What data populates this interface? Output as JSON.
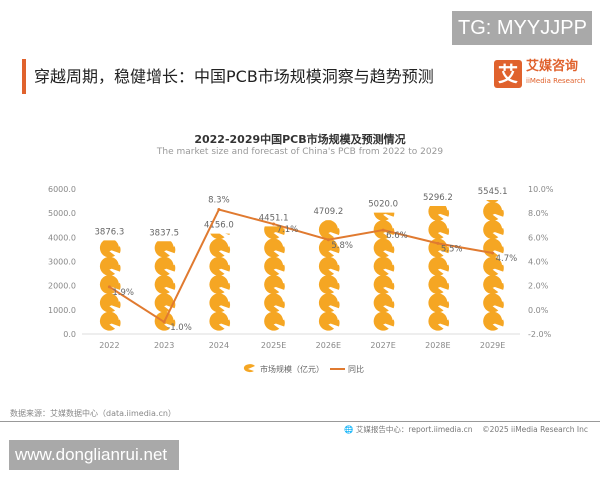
{
  "watermark_top": "TG: MYYJJPP",
  "watermark_bottom": "www.donglianrui.net",
  "header": {
    "title": "穿越周期，稳健增长：中国PCB市场规模洞察与趋势预测",
    "logo_mark": "艾",
    "logo_cn": "艾媒咨询",
    "logo_en": "iiMedia Research"
  },
  "footer": {
    "source": "数据来源：艾媒数据中心（data.iimedia.cn）",
    "report": "艾媒报告中心：report.iimedia.cn",
    "copyright": "©2025  iiMedia Research  Inc"
  },
  "colors": {
    "accent": "#e0622d",
    "bar": "#f5a623",
    "line": "#e07a30"
  },
  "chart_data": {
    "type": "bar+line",
    "title": "2022-2029中国PCB市场规模及预测情况",
    "subtitle": "The market size and forecast of China's PCB from 2022 to 2029",
    "categories": [
      "2022",
      "2023",
      "2024",
      "2025E",
      "2026E",
      "2027E",
      "2028E",
      "2029E"
    ],
    "series": [
      {
        "name": "市场规模（亿元）",
        "type": "pictorial-bar",
        "axis": "left",
        "values": [
          3876.3,
          3837.5,
          4156.0,
          4451.1,
          4709.2,
          5020.0,
          5296.2,
          5545.1
        ],
        "labels": [
          "3876.3",
          "3837.5",
          "4156.0",
          "4451.1",
          "4709.2",
          "5020.0",
          "5296.2",
          "5545.1"
        ]
      },
      {
        "name": "同比",
        "type": "line",
        "axis": "right",
        "values": [
          1.9,
          -1.0,
          8.3,
          7.1,
          5.8,
          6.6,
          5.5,
          4.7
        ],
        "labels": [
          "1.9%",
          "-1.0%",
          "8.3%",
          "7.1%",
          "5.8%",
          "6.6%",
          "5.5%",
          "4.7%"
        ]
      }
    ],
    "left_axis": {
      "range": [
        0,
        6000
      ],
      "ticks": [
        "0.0",
        "1000.0",
        "2000.0",
        "3000.0",
        "4000.0",
        "5000.0",
        "6000.0"
      ]
    },
    "right_axis": {
      "range": [
        -2,
        10
      ],
      "ticks": [
        "-2.0%",
        "0.0%",
        "2.0%",
        "4.0%",
        "6.0%",
        "8.0%",
        "10.0%"
      ]
    },
    "grid": false,
    "legend": "bottom"
  }
}
